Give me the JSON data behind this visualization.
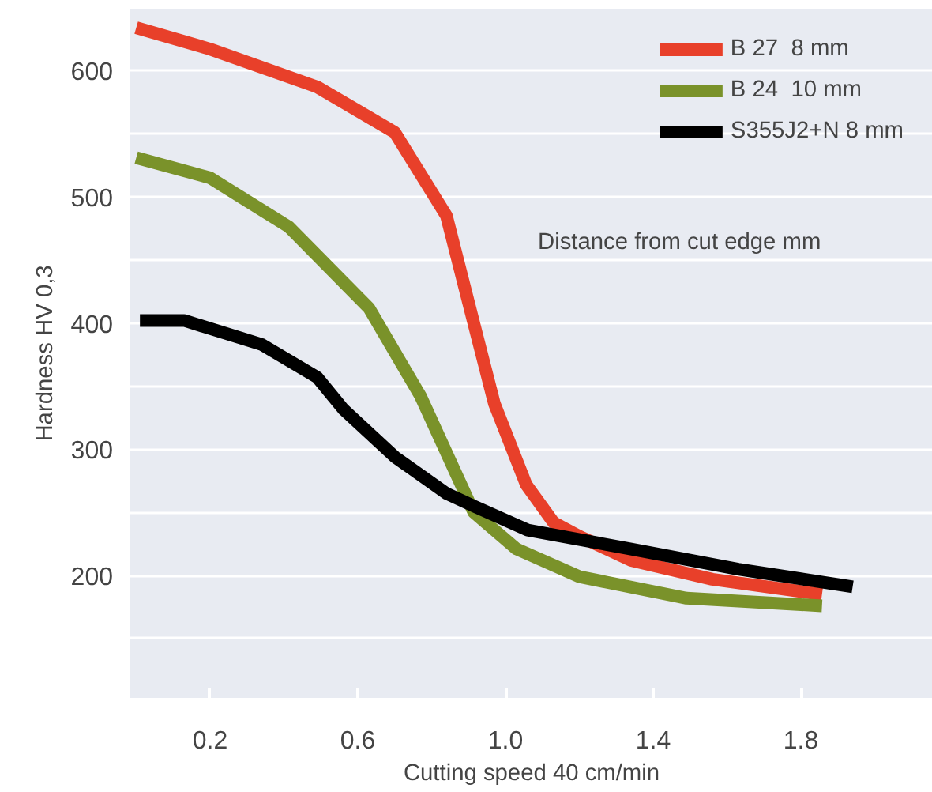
{
  "chart_data": {
    "type": "line",
    "xlabel": "Cutting speed 40 cm/min",
    "ylabel": "Hardness HV 0,3",
    "xlim": [
      -0.016,
      2.157
    ],
    "ylim": [
      103,
      649
    ],
    "xticks": [
      0.2,
      0.6,
      {
        "value": 1.0,
        "label": "1.0"
      },
      1.4,
      1.8
    ],
    "yticks": [
      {
        "value": 150,
        "label": null
      },
      200,
      {
        "value": 250,
        "label": null
      },
      300,
      {
        "value": 350,
        "label": null
      },
      400,
      {
        "value": 450,
        "label": null
      },
      500,
      {
        "value": 550,
        "label": null
      },
      600
    ],
    "grid": "y",
    "legend": "top right",
    "line_style": "solid",
    "marker": "none",
    "annotations": [
      "Distance from cut edge mm"
    ],
    "series": [
      {
        "name": "B 27  8 mm",
        "color": "#e8402a",
        "x": [
          0,
          0.2,
          0.49,
          0.7,
          0.84,
          0.914,
          0.97,
          1.056,
          1.13,
          1.2,
          1.34,
          1.56,
          1.857
        ],
        "values": [
          634,
          617,
          587,
          551,
          485,
          400,
          336,
          272,
          242,
          231,
          212,
          197,
          185
        ]
      },
      {
        "name": "B 24  10 mm",
        "color": "#7a922a",
        "x": [
          0,
          0.2,
          0.414,
          0.63,
          0.77,
          0.914,
          1.03,
          1.2,
          1.49,
          1.857
        ],
        "values": [
          531,
          515,
          476,
          412,
          342,
          250,
          221,
          199,
          182,
          176
        ]
      },
      {
        "name": "S355J2+N 8 mm",
        "color": "#000000",
        "x": [
          0.01,
          0.13,
          0.34,
          0.49,
          0.56,
          0.7,
          0.84,
          0.914,
          1.06,
          1.34,
          1.63,
          1.94
        ],
        "values": [
          402,
          402,
          383,
          357,
          332,
          294,
          265,
          255,
          236,
          221,
          205,
          191
        ]
      }
    ]
  }
}
